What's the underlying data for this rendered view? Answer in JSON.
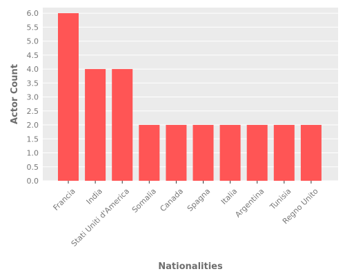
{
  "chart_data": {
    "type": "bar",
    "categories": [
      "Francia",
      "India",
      "Stati Uniti d'America",
      "Somalia",
      "Canada",
      "Spagna",
      "Italia",
      "Argentina",
      "Tunisia",
      "Regno Unito"
    ],
    "values": [
      6,
      4,
      4,
      2,
      2,
      2,
      2,
      2,
      2,
      2
    ],
    "title": "",
    "xlabel": "Nationalities",
    "ylabel": "Actor Count",
    "ylim": [
      0,
      6.2
    ],
    "yticks": [
      "0.0",
      "0.5",
      "1.0",
      "1.5",
      "2.0",
      "2.5",
      "3.0",
      "3.5",
      "4.0",
      "4.5",
      "5.0",
      "5.5",
      "6.0"
    ],
    "grid": true,
    "colors": {
      "bar": "#ff5555",
      "plot_background": "#ebebeb",
      "grid": "#ffffff",
      "tick_text": "#777777",
      "axis_label": "#6e6e6e"
    }
  }
}
